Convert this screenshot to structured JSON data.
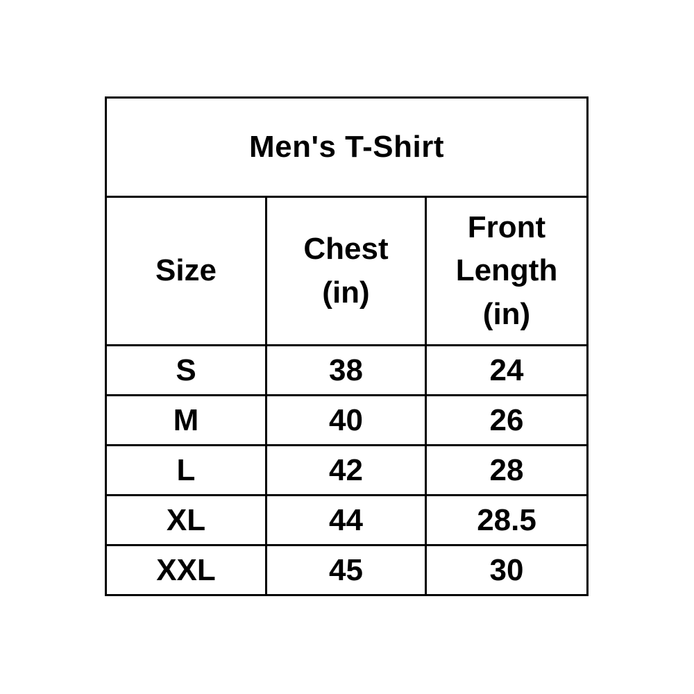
{
  "colors": {
    "border": "#000000",
    "text": "#000000",
    "background": "#ffffff"
  },
  "table": {
    "title": "Men's T-Shirt",
    "columns": [
      {
        "label": "Size",
        "lines": [
          "Size"
        ]
      },
      {
        "label": "Chest (in)",
        "lines": [
          "Chest",
          "(in)"
        ]
      },
      {
        "label": "Front Length (in)",
        "lines": [
          "Front",
          "Length",
          "(in)"
        ]
      }
    ],
    "rows": [
      {
        "size": "S",
        "chest": "38",
        "front_length": "24"
      },
      {
        "size": "M",
        "chest": "40",
        "front_length": "26"
      },
      {
        "size": "L",
        "chest": "42",
        "front_length": "28"
      },
      {
        "size": "XL",
        "chest": "44",
        "front_length": "28.5"
      },
      {
        "size": "XXL",
        "chest": "45",
        "front_length": "30"
      }
    ]
  },
  "chart_data": {
    "type": "table",
    "title": "Men's T-Shirt",
    "columns": [
      "Size",
      "Chest (in)",
      "Front Length (in)"
    ],
    "rows": [
      [
        "S",
        38,
        24
      ],
      [
        "M",
        40,
        26
      ],
      [
        "L",
        42,
        28
      ],
      [
        "XL",
        44,
        28.5
      ],
      [
        "XXL",
        45,
        30
      ]
    ]
  }
}
